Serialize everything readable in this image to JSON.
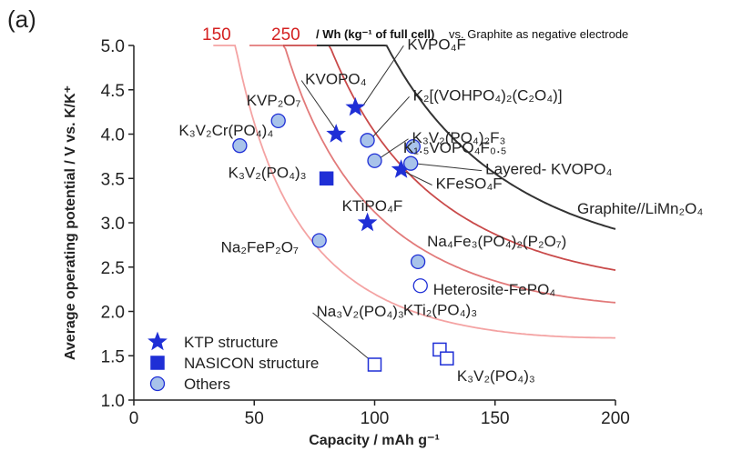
{
  "panel_label": "(a)",
  "chart_data": {
    "type": "scatter",
    "xlabel": "Capacity / mAh g⁻¹",
    "ylabel": "Average operating potential / V vs. K/K⁺",
    "xlim": [
      0,
      200
    ],
    "ylim": [
      1.0,
      5.0
    ],
    "xticks": [
      "0",
      "50",
      "100",
      "150",
      "200"
    ],
    "yticks": [
      "1.0",
      "1.5",
      "2.0",
      "2.5",
      "3.0",
      "3.5",
      "4.0",
      "4.5",
      "5.0"
    ],
    "grid": false,
    "legend_position": "bottom-left",
    "legend": {
      "ktp": "KTP structure",
      "nasicon": "NASICON structure",
      "others": "Others"
    },
    "energy_note": {
      "unit": "/ Wh (kg⁻¹ of full cell)",
      "suffix": "vs. Graphite as negative electrode"
    },
    "iso_energy_curves": [
      {
        "label": "150",
        "color": "#f4a3a3"
      },
      {
        "label": "250",
        "color": "#e27a7a"
      },
      {
        "label": "",
        "color": "#c94a4a"
      },
      {
        "label": "",
        "color": "#333333"
      }
    ],
    "graphite_label": "Graphite//LiMn₂O₄",
    "series": [
      {
        "name": "KTP structure",
        "marker": "star",
        "fill": "#1f2fd6",
        "points": [
          {
            "label": "KVPO₄F",
            "x": 92,
            "y": 4.3
          },
          {
            "label": "KVOPO₄",
            "x": 84,
            "y": 4.0
          },
          {
            "label": "KTiPO₄F",
            "x": 97,
            "y": 3.0
          },
          {
            "label": "KFeSO₄F",
            "x": 111,
            "y": 3.6
          }
        ]
      },
      {
        "name": "NASICON structure",
        "marker": "square",
        "fill": "#1f2fd6",
        "points": [
          {
            "label": "K₃V₂(PO₄)₃",
            "x": 80,
            "y": 3.5
          },
          {
            "label": "Na₃V₂(PO₄)₃",
            "x": 100,
            "y": 1.4,
            "open": true
          },
          {
            "label": "KTi₂(PO₄)₃",
            "x": 127,
            "y": 1.57,
            "open": true
          },
          {
            "label": "K₃V₂(PO₄)₃",
            "x": 130,
            "y": 1.47,
            "open": true
          }
        ]
      },
      {
        "name": "Others",
        "marker": "circle",
        "fill": "#a8c3ea",
        "points": [
          {
            "label": "K₃V₂Cr(PO₄)₄",
            "x": 44,
            "y": 3.87
          },
          {
            "label": "KVP₂O₇",
            "x": 60,
            "y": 4.15
          },
          {
            "label": "K₂[(VOHPO₄)₂(C₂O₄)]",
            "x": 97,
            "y": 3.93
          },
          {
            "label": "K₃V₂(PO₄)₂F₃",
            "x": 100,
            "y": 3.7
          },
          {
            "label": "K₁.₅VOPO₄F₀.₅",
            "x": 116,
            "y": 3.86
          },
          {
            "label": "Layered- KVOPO₄",
            "x": 115,
            "y": 3.67
          },
          {
            "label": "Na₂FeP₂O₇",
            "x": 77,
            "y": 2.8
          },
          {
            "label": "Na₄Fe₃(PO₄)₂(P₂O₇)",
            "x": 118,
            "y": 2.56
          },
          {
            "label": "Heterosite-FePO₄",
            "x": 119,
            "y": 2.29,
            "open": true
          }
        ]
      }
    ]
  }
}
